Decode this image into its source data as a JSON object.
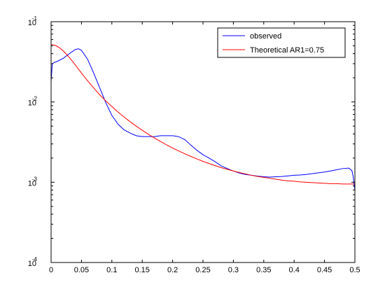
{
  "chart_data": {
    "type": "line",
    "title": "",
    "xlabel": "",
    "ylabel": "",
    "xlim": [
      0,
      0.5
    ],
    "ylim": [
      0.0001,
      0.1
    ],
    "yscale": "log",
    "grid": false,
    "legend_position": "top-right",
    "x_ticks": [
      {
        "value": 0,
        "label": "0"
      },
      {
        "value": 0.05,
        "label": "0.05"
      },
      {
        "value": 0.1,
        "label": "0.1"
      },
      {
        "value": 0.15,
        "label": "0.15"
      },
      {
        "value": 0.2,
        "label": "0.2"
      },
      {
        "value": 0.25,
        "label": "0.25"
      },
      {
        "value": 0.3,
        "label": "0.3"
      },
      {
        "value": 0.35,
        "label": "0.35"
      },
      {
        "value": 0.4,
        "label": "0.4"
      },
      {
        "value": 0.45,
        "label": "0.45"
      },
      {
        "value": 0.5,
        "label": "0.5"
      }
    ],
    "y_ticks": [
      {
        "value": 0.1,
        "base": "10",
        "exp": "-1"
      },
      {
        "value": 0.01,
        "base": "10",
        "exp": "-2"
      },
      {
        "value": 0.001,
        "base": "10",
        "exp": "-3"
      },
      {
        "value": 0.0001,
        "base": "10",
        "exp": "-4"
      }
    ],
    "series": [
      {
        "name": "observed",
        "color": "#0000ff",
        "x": [
          0,
          0.002,
          0.005,
          0.01,
          0.02,
          0.03,
          0.04,
          0.045,
          0.05,
          0.06,
          0.07,
          0.08,
          0.09,
          0.1,
          0.11,
          0.12,
          0.13,
          0.14,
          0.15,
          0.16,
          0.17,
          0.18,
          0.19,
          0.2,
          0.21,
          0.22,
          0.23,
          0.24,
          0.25,
          0.26,
          0.27,
          0.28,
          0.29,
          0.3,
          0.31,
          0.32,
          0.33,
          0.34,
          0.35,
          0.36,
          0.37,
          0.38,
          0.39,
          0.4,
          0.41,
          0.42,
          0.43,
          0.44,
          0.45,
          0.46,
          0.47,
          0.48,
          0.49,
          0.495,
          0.497,
          0.499,
          0.5
        ],
        "y": [
          0.018,
          0.03,
          0.031,
          0.032,
          0.035,
          0.04,
          0.045,
          0.046,
          0.044,
          0.034,
          0.023,
          0.015,
          0.0098,
          0.0068,
          0.0053,
          0.0045,
          0.0041,
          0.0038,
          0.0037,
          0.0037,
          0.0037,
          0.0038,
          0.0038,
          0.0038,
          0.0037,
          0.0034,
          0.0029,
          0.0025,
          0.0022,
          0.002,
          0.0018,
          0.0016,
          0.00148,
          0.00138,
          0.0013,
          0.00125,
          0.00122,
          0.00119,
          0.00117,
          0.00116,
          0.00117,
          0.00118,
          0.0012,
          0.00122,
          0.00123,
          0.00125,
          0.00128,
          0.00131,
          0.00134,
          0.00138,
          0.00143,
          0.00148,
          0.0015,
          0.0014,
          0.0012,
          0.0009,
          0.0008
        ]
      },
      {
        "name": "Theoretical AR1=0.75",
        "color": "#ff0000",
        "x": [
          0,
          0.005,
          0.01,
          0.015,
          0.02,
          0.025,
          0.03,
          0.035,
          0.04,
          0.05,
          0.06,
          0.07,
          0.08,
          0.09,
          0.1,
          0.11,
          0.12,
          0.13,
          0.14,
          0.15,
          0.16,
          0.17,
          0.18,
          0.19,
          0.2,
          0.21,
          0.22,
          0.23,
          0.24,
          0.25,
          0.26,
          0.27,
          0.28,
          0.29,
          0.3,
          0.31,
          0.32,
          0.33,
          0.34,
          0.35,
          0.36,
          0.37,
          0.38,
          0.39,
          0.4,
          0.41,
          0.42,
          0.43,
          0.44,
          0.45,
          0.46,
          0.47,
          0.48,
          0.49,
          0.5
        ],
        "y": [
          0.052,
          0.0513,
          0.0494,
          0.0466,
          0.0432,
          0.0395,
          0.0358,
          0.0322,
          0.0288,
          0.0229,
          0.0184,
          0.015,
          0.0123,
          0.0103,
          0.0088,
          0.0075,
          0.0065,
          0.00568,
          0.005,
          0.00444,
          0.00396,
          0.00356,
          0.00322,
          0.00292,
          0.00267,
          0.00245,
          0.00226,
          0.0021,
          0.00195,
          0.00182,
          0.00171,
          0.00161,
          0.00152,
          0.00145,
          0.00138,
          0.00132,
          0.00127,
          0.00122,
          0.00118,
          0.00115,
          0.00112,
          0.00109,
          0.00106,
          0.00104,
          0.00103,
          0.00101,
          0.001,
          0.00099,
          0.00098,
          0.00097,
          0.00096,
          0.00096,
          0.00095,
          0.00095,
          0.00095
        ]
      }
    ]
  }
}
